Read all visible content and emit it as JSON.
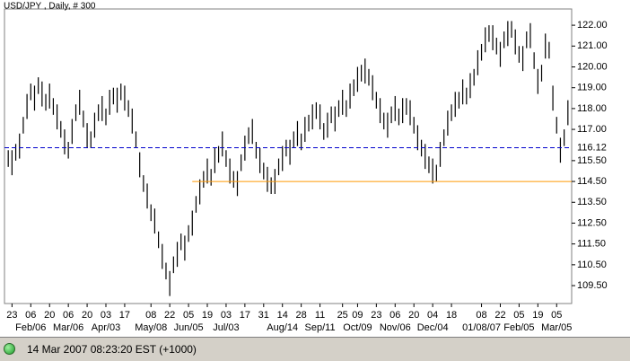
{
  "chart_data": {
    "type": "ohlc",
    "title": "USD/JPY , Daily, # 300",
    "high": [
      116.0,
      116.0,
      116.3,
      116.8,
      117.6,
      118.7,
      119.2,
      119.1,
      119.5,
      119.3,
      118.7,
      119.2,
      118.5,
      118.2,
      117.4,
      117.0,
      116.4,
      117.5,
      118.2,
      118.9,
      117.9,
      117.3,
      116.9,
      117.8,
      118.2,
      118.6,
      118.0,
      118.9,
      119.0,
      119.0,
      119.2,
      119.1,
      118.4,
      118.0,
      116.9,
      115.9,
      114.8,
      114.4,
      113.4,
      113.2,
      112.1,
      111.5,
      110.6,
      110.2,
      110.9,
      111.6,
      112.0,
      111.9,
      112.4,
      113.1,
      113.8,
      114.6,
      115.0,
      115.6,
      115.1,
      116.1,
      116.2,
      116.9,
      116.0,
      115.6,
      115.0,
      115.0,
      115.8,
      116.7,
      117.1,
      117.5,
      116.4,
      116.1,
      115.4,
      115.2,
      114.7,
      115.1,
      115.6,
      116.2,
      116.5,
      116.5,
      116.9,
      117.4,
      116.8,
      117.6,
      117.7,
      118.2,
      118.3,
      118.2,
      117.3,
      117.8,
      118.1,
      118.1,
      118.4,
      118.9,
      118.4,
      119.2,
      119.4,
      120.0,
      120.1,
      120.4,
      119.9,
      119.6,
      118.8,
      118.5,
      117.8,
      117.8,
      118.1,
      118.6,
      118.0,
      118.5,
      118.5,
      118.4,
      117.6,
      117.2,
      116.5,
      116.3,
      115.7,
      115.6,
      115.3,
      116.4,
      117.0,
      117.9,
      118.2,
      118.8,
      118.8,
      119.4,
      119.0,
      119.7,
      119.9,
      120.8,
      121.1,
      121.9,
      122.0,
      122.0,
      121.4,
      121.2,
      121.7,
      122.2,
      122.2,
      121.8,
      121.0,
      121.0,
      121.7,
      122.1,
      120.7,
      119.9,
      120.1,
      121.6,
      121.2,
      119.1,
      117.6,
      116.6,
      117.0,
      118.4
    ],
    "low": [
      115.2,
      114.8,
      115.5,
      115.6,
      116.8,
      117.5,
      118.4,
      117.9,
      118.7,
      118.1,
      117.9,
      118.0,
      117.7,
      117.0,
      116.6,
      115.8,
      115.6,
      116.3,
      117.4,
      117.7,
      117.1,
      116.1,
      116.1,
      116.6,
      117.4,
      117.4,
      117.2,
      117.7,
      118.2,
      117.8,
      118.4,
      117.9,
      117.6,
      116.8,
      116.1,
      114.7,
      114.0,
      113.2,
      112.6,
      112.0,
      111.3,
      110.3,
      109.8,
      109.0,
      110.1,
      110.4,
      111.2,
      110.7,
      111.6,
      111.9,
      113.0,
      113.4,
      114.2,
      114.4,
      114.3,
      114.9,
      115.4,
      115.7,
      115.2,
      114.4,
      114.2,
      113.8,
      115.0,
      115.5,
      116.3,
      116.3,
      115.6,
      114.9,
      114.6,
      114.0,
      113.9,
      113.9,
      114.8,
      115.0,
      115.7,
      115.3,
      116.1,
      116.2,
      116.0,
      116.4,
      116.9,
      117.0,
      117.5,
      117.0,
      116.5,
      116.6,
      117.3,
      116.9,
      117.6,
      117.7,
      117.6,
      118.0,
      118.6,
      118.8,
      119.3,
      119.2,
      119.1,
      118.4,
      118.0,
      117.3,
      117.0,
      116.6,
      117.3,
      117.4,
      117.2,
      117.3,
      117.7,
      117.2,
      116.8,
      116.0,
      115.7,
      115.1,
      114.9,
      114.4,
      114.5,
      115.2,
      116.2,
      116.7,
      117.4,
      117.6,
      118.0,
      118.2,
      118.2,
      118.5,
      119.1,
      119.6,
      120.3,
      120.7,
      121.2,
      120.8,
      120.6,
      120.0,
      120.9,
      121.0,
      121.4,
      120.6,
      120.2,
      119.8,
      120.9,
      120.9,
      119.9,
      118.7,
      119.3,
      120.4,
      120.4,
      117.9,
      116.8,
      115.4,
      116.2,
      117.2
    ],
    "color": "#000000",
    "xlim": [
      -1,
      150
    ],
    "ylim": [
      108.64,
      122.78
    ],
    "yticks": [
      {
        "value": 122,
        "label": "122.00"
      },
      {
        "value": 121,
        "label": "121.00"
      },
      {
        "value": 120,
        "label": "120.00"
      },
      {
        "value": 119,
        "label": "119.00"
      },
      {
        "value": 118,
        "label": "118.00"
      },
      {
        "value": 117,
        "label": "117.00"
      },
      {
        "value": 115.5,
        "label": "115.50"
      },
      {
        "value": 114.5,
        "label": "114.50"
      },
      {
        "value": 113.5,
        "label": "113.50"
      },
      {
        "value": 112.5,
        "label": "112.50"
      },
      {
        "value": 111.5,
        "label": "111.50"
      },
      {
        "value": 110.5,
        "label": "110.50"
      },
      {
        "value": 109.5,
        "label": "109.50"
      }
    ],
    "xticks": [
      {
        "value": 1,
        "label": "23"
      },
      {
        "value": 6,
        "label": "06"
      },
      {
        "value": 11,
        "label": "20"
      },
      {
        "value": 16,
        "label": "06"
      },
      {
        "value": 21,
        "label": "20"
      },
      {
        "value": 26,
        "label": "03"
      },
      {
        "value": 31,
        "label": "17"
      },
      {
        "value": 38,
        "label": "08"
      },
      {
        "value": 43,
        "label": "22"
      },
      {
        "value": 48,
        "label": "05"
      },
      {
        "value": 53,
        "label": "19"
      },
      {
        "value": 58,
        "label": "03"
      },
      {
        "value": 63,
        "label": "17"
      },
      {
        "value": 68,
        "label": "31"
      },
      {
        "value": 73,
        "label": "14"
      },
      {
        "value": 78,
        "label": "28"
      },
      {
        "value": 83,
        "label": "11"
      },
      {
        "value": 89,
        "label": "25"
      },
      {
        "value": 93,
        "label": "09"
      },
      {
        "value": 98,
        "label": "23"
      },
      {
        "value": 103,
        "label": "06"
      },
      {
        "value": 108,
        "label": "20"
      },
      {
        "value": 113,
        "label": "04"
      },
      {
        "value": 118,
        "label": "18"
      },
      {
        "value": 126,
        "label": "08"
      },
      {
        "value": 131,
        "label": "22"
      },
      {
        "value": 136,
        "label": "05"
      },
      {
        "value": 141,
        "label": "19"
      },
      {
        "value": 146,
        "label": "05"
      }
    ],
    "xticks2": [
      {
        "value": 6,
        "label": "Feb/06"
      },
      {
        "value": 16,
        "label": "Mar/06"
      },
      {
        "value": 26,
        "label": "Apr/03"
      },
      {
        "value": 38,
        "label": "May/08"
      },
      {
        "value": 48,
        "label": "Jun/05"
      },
      {
        "value": 58,
        "label": "Jul/03"
      },
      {
        "value": 73,
        "label": "Aug/14"
      },
      {
        "value": 83,
        "label": "Sep/11"
      },
      {
        "value": 93,
        "label": "Oct/09"
      },
      {
        "value": 103,
        "label": "Nov/06"
      },
      {
        "value": 113,
        "label": "Dec/04"
      },
      {
        "value": 126,
        "label": "01/08/07"
      },
      {
        "value": 136,
        "label": "Feb/05"
      },
      {
        "value": 146,
        "label": "Mar/05"
      }
    ],
    "hlines": [
      {
        "value": 116.12,
        "label": "116.12",
        "color": "#0000cc",
        "dashed": true
      },
      {
        "value": 114.5,
        "color": "#ff9900",
        "dashed": false,
        "from": 49
      }
    ]
  },
  "status": "14 Mar 2007 08:23:20 EST (+1000)"
}
